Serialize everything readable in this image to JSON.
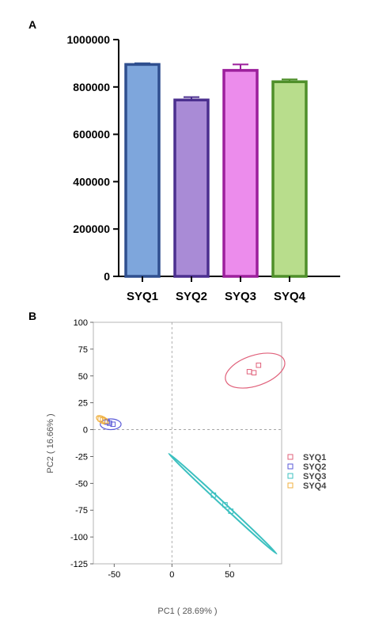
{
  "chart_data": [
    {
      "panel": "A",
      "type": "bar",
      "categories": [
        "SYQ1",
        "SYQ2",
        "SYQ3",
        "SYQ4"
      ],
      "values": [
        895000,
        745000,
        870000,
        822000
      ],
      "errors": [
        5000,
        12000,
        25000,
        10000
      ],
      "ylim": [
        0,
        1000000
      ],
      "yticks": [
        "0",
        "200000",
        "400000",
        "600000",
        "800000",
        "1000000"
      ],
      "xlabel": "",
      "ylabel": "",
      "colors": {
        "fill": [
          "#7ea6dc",
          "#a98bd6",
          "#ec8cec",
          "#b8dd8c"
        ],
        "stroke": [
          "#2f4f8f",
          "#4b2f8f",
          "#9c1f9c",
          "#4f8f2a"
        ]
      }
    },
    {
      "panel": "B",
      "type": "scatter",
      "xlabel": "PC1 ( 28.69% )",
      "ylabel": "PC2 ( 16.66% )",
      "xlim": [
        -68,
        95
      ],
      "ylim": [
        -125,
        100
      ],
      "xticks": [
        "-50",
        "0",
        "50"
      ],
      "yticks": [
        "100",
        "75",
        "50",
        "25",
        "0",
        "-25",
        "-50",
        "-75",
        "-100",
        "-125"
      ],
      "grid": false,
      "reference_lines": "x=0, y=0 (dashed)",
      "legend_position": "right",
      "series": [
        {
          "name": "SYQ1",
          "color": "#e0607a",
          "points": [
            [
              67,
              54
            ],
            [
              71,
              53
            ],
            [
              75,
              60
            ]
          ]
        },
        {
          "name": "SYQ2",
          "color": "#5a5ad8",
          "points": [
            [
              -56,
              7
            ],
            [
              -54,
              6
            ],
            [
              -51,
              5
            ]
          ]
        },
        {
          "name": "SYQ3",
          "color": "#3cc0c0",
          "points": [
            [
              36,
              -61
            ],
            [
              46,
              -70
            ],
            [
              51,
              -76
            ]
          ]
        },
        {
          "name": "SYQ4",
          "color": "#f0b040",
          "points": [
            [
              -62,
              10
            ],
            [
              -60,
              9
            ],
            [
              -58,
              8
            ]
          ]
        }
      ],
      "ellipses": [
        {
          "series": "SYQ1",
          "cx": 72,
          "cy": 55,
          "rx": 27,
          "ry": 14,
          "angle_deg": 20
        },
        {
          "series": "SYQ2",
          "cx": -53,
          "cy": 5,
          "rx": 9,
          "ry": 5,
          "angle_deg": 0
        },
        {
          "series": "SYQ3",
          "cx": 44,
          "cy": -69,
          "rx": 66,
          "ry": 1.5,
          "angle_deg": -45
        },
        {
          "series": "SYQ4",
          "cx": -60,
          "cy": 9,
          "rx": 6,
          "ry": 3,
          "angle_deg": -30
        }
      ]
    }
  ]
}
